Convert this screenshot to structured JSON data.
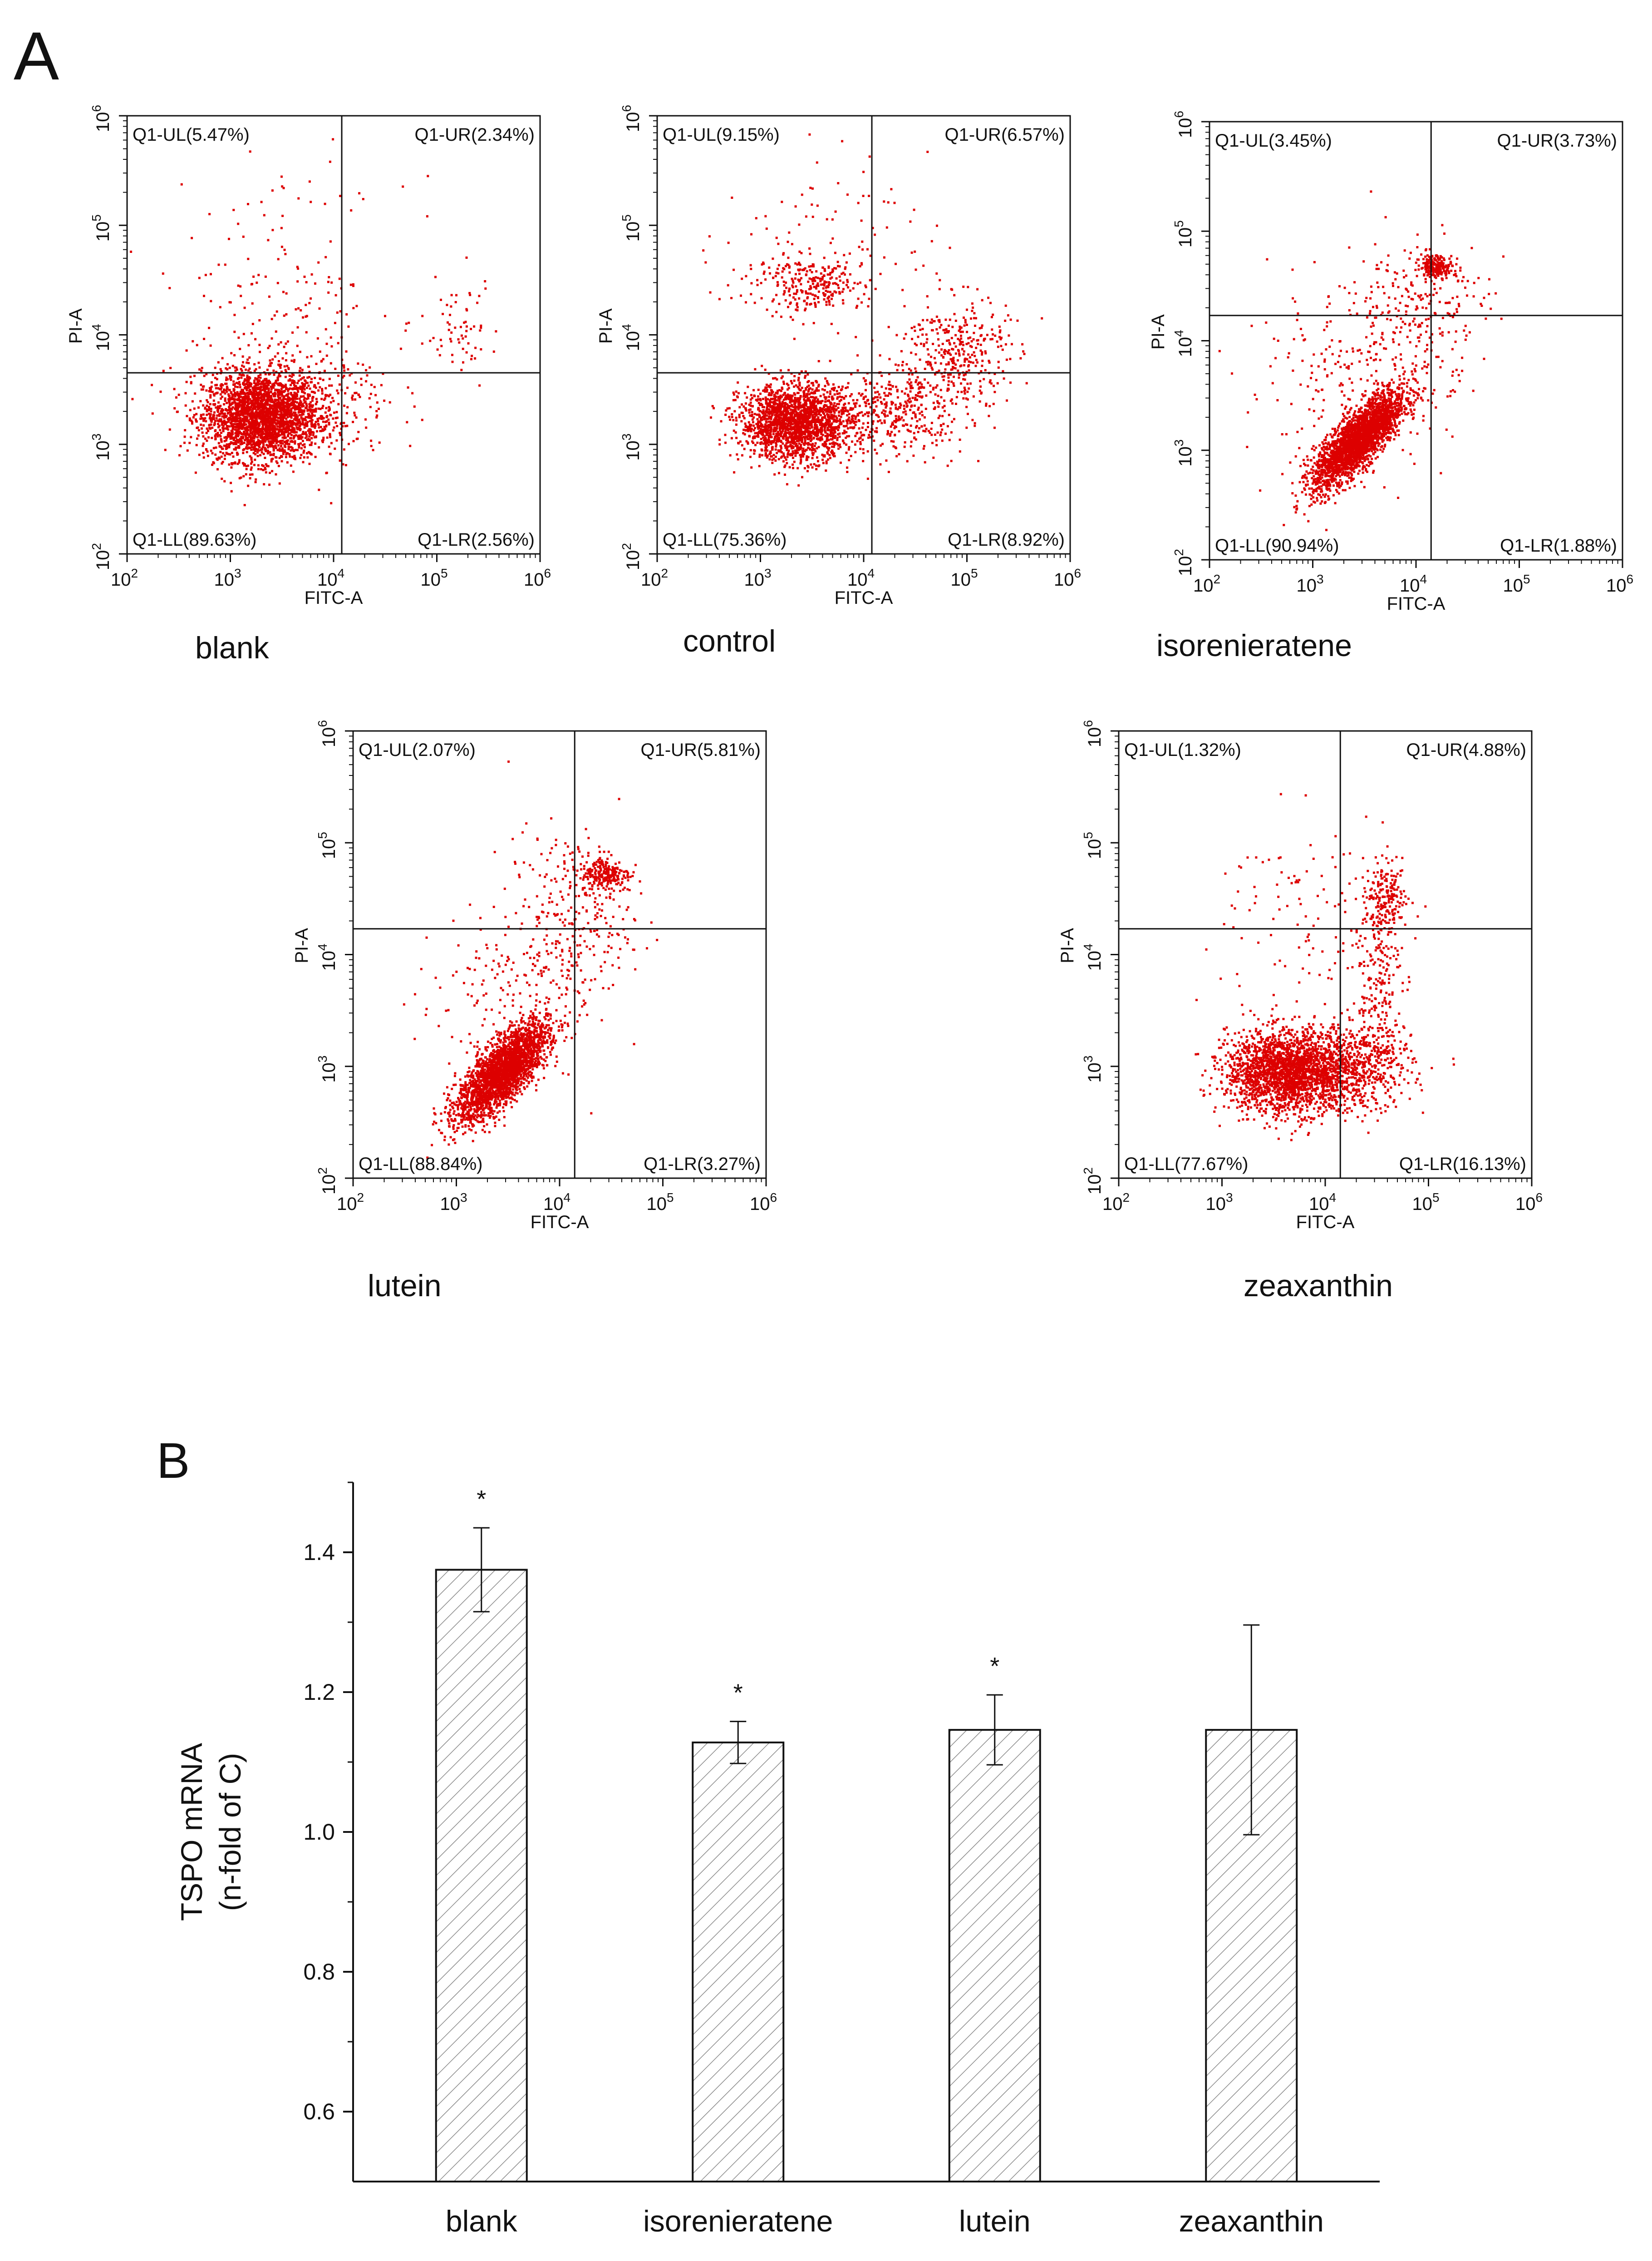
{
  "panel_a_label": "A",
  "panel_b_label": "B",
  "chart_data": [
    {
      "type": "scatter",
      "subtype": "flow-cytometry-quadrant",
      "title": "blank",
      "xlabel": "FITC-A",
      "ylabel": "PI-A",
      "xscale": "log",
      "yscale": "log",
      "xlim": [
        100,
        1000000
      ],
      "ylim": [
        100,
        1000000
      ],
      "tick_labels": [
        "10^2",
        "10^3",
        "10^4",
        "10^5",
        "10^6"
      ],
      "gate": {
        "x": 12000,
        "y": 4500
      },
      "quadrants": {
        "UL": "Q1-UL(5.47%)",
        "UR": "Q1-UR(2.34%)",
        "LL": "Q1-LL(89.63%)",
        "LR": "Q1-LR(2.56%)"
      },
      "clusters": [
        {
          "cx": 3.3,
          "cy": 3.25,
          "sx": 0.28,
          "sy": 0.2,
          "n": 2600
        },
        {
          "cx": 3.7,
          "cy": 3.4,
          "sx": 0.45,
          "sy": 0.3,
          "n": 350
        },
        {
          "cx": 5.2,
          "cy": 4.1,
          "sx": 0.2,
          "sy": 0.2,
          "n": 60
        },
        {
          "cx": 3.5,
          "cy": 4.4,
          "sx": 0.6,
          "sy": 0.5,
          "n": 150
        }
      ]
    },
    {
      "type": "scatter",
      "subtype": "flow-cytometry-quadrant",
      "title": "control",
      "xlabel": "FITC-A",
      "ylabel": "PI-A",
      "xscale": "log",
      "yscale": "log",
      "xlim": [
        100,
        1000000
      ],
      "ylim": [
        100,
        1000000
      ],
      "tick_labels": [
        "10^2",
        "10^3",
        "10^4",
        "10^5",
        "10^6"
      ],
      "gate": {
        "x": 12000,
        "y": 4500
      },
      "quadrants": {
        "UL": "Q1-UL(9.15%)",
        "UR": "Q1-UR(6.57%)",
        "LL": "Q1-LL(75.36%)",
        "LR": "Q1-LR(8.92%)"
      },
      "clusters": [
        {
          "cx": 3.35,
          "cy": 3.2,
          "sx": 0.27,
          "sy": 0.17,
          "n": 2000
        },
        {
          "cx": 3.5,
          "cy": 4.45,
          "sx": 0.25,
          "sy": 0.12,
          "n": 250
        },
        {
          "cx": 4.9,
          "cy": 3.85,
          "sx": 0.25,
          "sy": 0.25,
          "n": 350
        },
        {
          "cx": 4.3,
          "cy": 3.3,
          "sx": 0.35,
          "sy": 0.2,
          "n": 400
        },
        {
          "cx": 3.6,
          "cy": 4.8,
          "sx": 0.5,
          "sy": 0.4,
          "n": 120
        }
      ]
    },
    {
      "type": "scatter",
      "subtype": "flow-cytometry-quadrant",
      "title": "isorenieratene",
      "xlabel": "FITC-A",
      "ylabel": "PI-A",
      "xscale": "log",
      "yscale": "log",
      "xlim": [
        100,
        1000000
      ],
      "ylim": [
        100,
        1000000
      ],
      "tick_labels": [
        "10^2",
        "10^3",
        "10^4",
        "10^5",
        "10^6"
      ],
      "gate": {
        "x": 14000,
        "y": 17000
      },
      "quadrants": {
        "UL": "Q1-UL(3.45%)",
        "UR": "Q1-UR(3.73%)",
        "LL": "Q1-LL(90.94%)",
        "LR": "Q1-LR(1.88%)"
      },
      "clusters": [
        {
          "cx": 3.45,
          "cy": 3.1,
          "sx": 0.22,
          "sy": 0.22,
          "corr": 0.8,
          "n": 2600
        },
        {
          "cx": 4.2,
          "cy": 4.68,
          "sx": 0.08,
          "sy": 0.05,
          "n": 200
        },
        {
          "cx": 4.0,
          "cy": 4.3,
          "sx": 0.35,
          "sy": 0.35,
          "n": 250
        },
        {
          "cx": 3.3,
          "cy": 3.6,
          "sx": 0.5,
          "sy": 0.4,
          "n": 200
        }
      ]
    },
    {
      "type": "scatter",
      "subtype": "flow-cytometry-quadrant",
      "title": "lutein",
      "xlabel": "FITC-A",
      "ylabel": "PI-A",
      "xscale": "log",
      "yscale": "log",
      "xlim": [
        100,
        1000000
      ],
      "ylim": [
        100,
        1000000
      ],
      "tick_labels": [
        "10^2",
        "10^3",
        "10^4",
        "10^5",
        "10^6"
      ],
      "gate": {
        "x": 14000,
        "y": 17000
      },
      "quadrants": {
        "UL": "Q1-UL(2.07%)",
        "UR": "Q1-UR(5.81%)",
        "LL": "Q1-LL(88.84%)",
        "LR": "Q1-LR(3.27%)"
      },
      "clusters": [
        {
          "cx": 3.45,
          "cy": 2.95,
          "sx": 0.22,
          "sy": 0.22,
          "corr": 0.75,
          "n": 2600
        },
        {
          "cx": 4.45,
          "cy": 4.72,
          "sx": 0.12,
          "sy": 0.08,
          "n": 220
        },
        {
          "cx": 4.1,
          "cy": 4.3,
          "sx": 0.3,
          "sy": 0.4,
          "n": 280
        },
        {
          "cx": 3.4,
          "cy": 3.6,
          "sx": 0.4,
          "sy": 0.4,
          "n": 150
        }
      ]
    },
    {
      "type": "scatter",
      "subtype": "flow-cytometry-quadrant",
      "title": "zeaxanthin",
      "xlabel": "FITC-A",
      "ylabel": "PI-A",
      "xscale": "log",
      "yscale": "log",
      "xlim": [
        100,
        1000000
      ],
      "ylim": [
        100,
        1000000
      ],
      "tick_labels": [
        "10^2",
        "10^3",
        "10^4",
        "10^5",
        "10^6"
      ],
      "gate": {
        "x": 14000,
        "y": 17000
      },
      "quadrants": {
        "UL": "Q1-UL(1.32%)",
        "UR": "Q1-UR(4.88%)",
        "LL": "Q1-LL(77.67%)",
        "LR": "Q1-LR(16.13%)"
      },
      "clusters": [
        {
          "cx": 3.65,
          "cy": 2.95,
          "sx": 0.3,
          "sy": 0.18,
          "n": 2300
        },
        {
          "cx": 4.35,
          "cy": 3.0,
          "sx": 0.25,
          "sy": 0.2,
          "n": 500
        },
        {
          "cx": 4.6,
          "cy": 4.5,
          "sx": 0.1,
          "sy": 0.15,
          "n": 180
        },
        {
          "cx": 4.5,
          "cy": 3.8,
          "sx": 0.12,
          "sy": 0.45,
          "n": 220
        },
        {
          "cx": 3.9,
          "cy": 4.3,
          "sx": 0.5,
          "sy": 0.5,
          "n": 120
        }
      ]
    },
    {
      "type": "bar",
      "title": "",
      "categories": [
        "blank",
        "isorenieratene",
        "lutein",
        "zeaxanthin"
      ],
      "values": [
        1.375,
        1.128,
        1.146,
        1.146
      ],
      "errors": [
        0.06,
        0.03,
        0.05,
        0.15
      ],
      "significance": [
        "*",
        "*",
        "*",
        ""
      ],
      "xlabel": "",
      "ylabel": "TSPO mRNA",
      "ylabel2": "(n-fold of C)",
      "ylim": [
        0.5,
        1.5
      ],
      "yticks": [
        0.6,
        0.8,
        1.0,
        1.2,
        1.4
      ],
      "ytick_labels": [
        "0.6",
        "0.8",
        "1.0",
        "1.2",
        "1.4"
      ],
      "fill": "hatched"
    }
  ],
  "colors": {
    "dots": "#dd0000",
    "axis": "#111111",
    "hatch": "#8a8a8a"
  }
}
